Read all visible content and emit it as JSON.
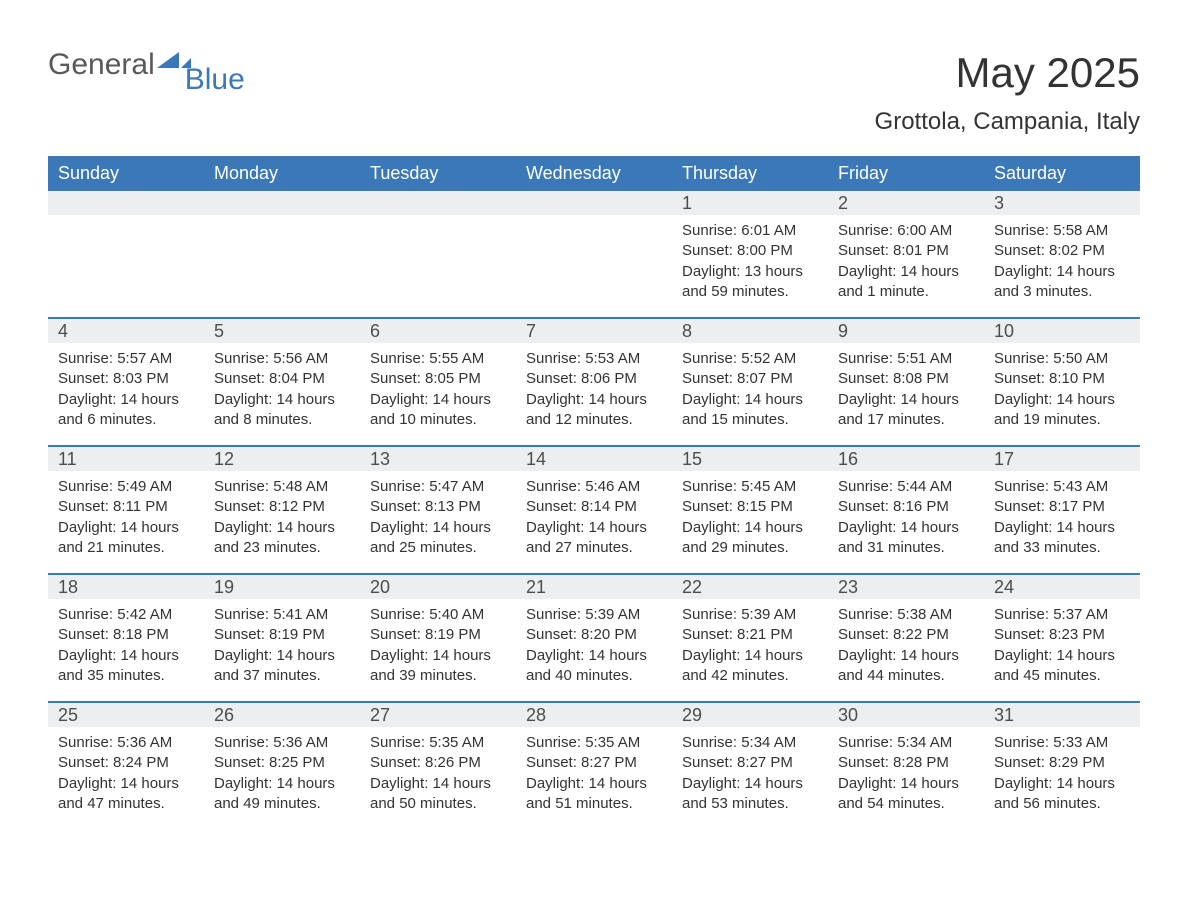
{
  "brand": {
    "word1": "General",
    "word2": "Blue",
    "shape_color": "#3a78b8"
  },
  "header": {
    "title": "May 2025",
    "location": "Grottola, Campania, Italy"
  },
  "calendar": {
    "accent_color": "#3a78b8",
    "header_bg": "#3a78b8",
    "header_text_color": "#ffffff",
    "dayrow_bg": "#eceeef",
    "text_color": "#333333",
    "columns": [
      "Sunday",
      "Monday",
      "Tuesday",
      "Wednesday",
      "Thursday",
      "Friday",
      "Saturday"
    ],
    "weeks": [
      [
        null,
        null,
        null,
        null,
        {
          "n": "1",
          "sunrise": "Sunrise: 6:01 AM",
          "sunset": "Sunset: 8:00 PM",
          "daylight": "Daylight: 13 hours and 59 minutes."
        },
        {
          "n": "2",
          "sunrise": "Sunrise: 6:00 AM",
          "sunset": "Sunset: 8:01 PM",
          "daylight": "Daylight: 14 hours and 1 minute."
        },
        {
          "n": "3",
          "sunrise": "Sunrise: 5:58 AM",
          "sunset": "Sunset: 8:02 PM",
          "daylight": "Daylight: 14 hours and 3 minutes."
        }
      ],
      [
        {
          "n": "4",
          "sunrise": "Sunrise: 5:57 AM",
          "sunset": "Sunset: 8:03 PM",
          "daylight": "Daylight: 14 hours and 6 minutes."
        },
        {
          "n": "5",
          "sunrise": "Sunrise: 5:56 AM",
          "sunset": "Sunset: 8:04 PM",
          "daylight": "Daylight: 14 hours and 8 minutes."
        },
        {
          "n": "6",
          "sunrise": "Sunrise: 5:55 AM",
          "sunset": "Sunset: 8:05 PM",
          "daylight": "Daylight: 14 hours and 10 minutes."
        },
        {
          "n": "7",
          "sunrise": "Sunrise: 5:53 AM",
          "sunset": "Sunset: 8:06 PM",
          "daylight": "Daylight: 14 hours and 12 minutes."
        },
        {
          "n": "8",
          "sunrise": "Sunrise: 5:52 AM",
          "sunset": "Sunset: 8:07 PM",
          "daylight": "Daylight: 14 hours and 15 minutes."
        },
        {
          "n": "9",
          "sunrise": "Sunrise: 5:51 AM",
          "sunset": "Sunset: 8:08 PM",
          "daylight": "Daylight: 14 hours and 17 minutes."
        },
        {
          "n": "10",
          "sunrise": "Sunrise: 5:50 AM",
          "sunset": "Sunset: 8:10 PM",
          "daylight": "Daylight: 14 hours and 19 minutes."
        }
      ],
      [
        {
          "n": "11",
          "sunrise": "Sunrise: 5:49 AM",
          "sunset": "Sunset: 8:11 PM",
          "daylight": "Daylight: 14 hours and 21 minutes."
        },
        {
          "n": "12",
          "sunrise": "Sunrise: 5:48 AM",
          "sunset": "Sunset: 8:12 PM",
          "daylight": "Daylight: 14 hours and 23 minutes."
        },
        {
          "n": "13",
          "sunrise": "Sunrise: 5:47 AM",
          "sunset": "Sunset: 8:13 PM",
          "daylight": "Daylight: 14 hours and 25 minutes."
        },
        {
          "n": "14",
          "sunrise": "Sunrise: 5:46 AM",
          "sunset": "Sunset: 8:14 PM",
          "daylight": "Daylight: 14 hours and 27 minutes."
        },
        {
          "n": "15",
          "sunrise": "Sunrise: 5:45 AM",
          "sunset": "Sunset: 8:15 PM",
          "daylight": "Daylight: 14 hours and 29 minutes."
        },
        {
          "n": "16",
          "sunrise": "Sunrise: 5:44 AM",
          "sunset": "Sunset: 8:16 PM",
          "daylight": "Daylight: 14 hours and 31 minutes."
        },
        {
          "n": "17",
          "sunrise": "Sunrise: 5:43 AM",
          "sunset": "Sunset: 8:17 PM",
          "daylight": "Daylight: 14 hours and 33 minutes."
        }
      ],
      [
        {
          "n": "18",
          "sunrise": "Sunrise: 5:42 AM",
          "sunset": "Sunset: 8:18 PM",
          "daylight": "Daylight: 14 hours and 35 minutes."
        },
        {
          "n": "19",
          "sunrise": "Sunrise: 5:41 AM",
          "sunset": "Sunset: 8:19 PM",
          "daylight": "Daylight: 14 hours and 37 minutes."
        },
        {
          "n": "20",
          "sunrise": "Sunrise: 5:40 AM",
          "sunset": "Sunset: 8:19 PM",
          "daylight": "Daylight: 14 hours and 39 minutes."
        },
        {
          "n": "21",
          "sunrise": "Sunrise: 5:39 AM",
          "sunset": "Sunset: 8:20 PM",
          "daylight": "Daylight: 14 hours and 40 minutes."
        },
        {
          "n": "22",
          "sunrise": "Sunrise: 5:39 AM",
          "sunset": "Sunset: 8:21 PM",
          "daylight": "Daylight: 14 hours and 42 minutes."
        },
        {
          "n": "23",
          "sunrise": "Sunrise: 5:38 AM",
          "sunset": "Sunset: 8:22 PM",
          "daylight": "Daylight: 14 hours and 44 minutes."
        },
        {
          "n": "24",
          "sunrise": "Sunrise: 5:37 AM",
          "sunset": "Sunset: 8:23 PM",
          "daylight": "Daylight: 14 hours and 45 minutes."
        }
      ],
      [
        {
          "n": "25",
          "sunrise": "Sunrise: 5:36 AM",
          "sunset": "Sunset: 8:24 PM",
          "daylight": "Daylight: 14 hours and 47 minutes."
        },
        {
          "n": "26",
          "sunrise": "Sunrise: 5:36 AM",
          "sunset": "Sunset: 8:25 PM",
          "daylight": "Daylight: 14 hours and 49 minutes."
        },
        {
          "n": "27",
          "sunrise": "Sunrise: 5:35 AM",
          "sunset": "Sunset: 8:26 PM",
          "daylight": "Daylight: 14 hours and 50 minutes."
        },
        {
          "n": "28",
          "sunrise": "Sunrise: 5:35 AM",
          "sunset": "Sunset: 8:27 PM",
          "daylight": "Daylight: 14 hours and 51 minutes."
        },
        {
          "n": "29",
          "sunrise": "Sunrise: 5:34 AM",
          "sunset": "Sunset: 8:27 PM",
          "daylight": "Daylight: 14 hours and 53 minutes."
        },
        {
          "n": "30",
          "sunrise": "Sunrise: 5:34 AM",
          "sunset": "Sunset: 8:28 PM",
          "daylight": "Daylight: 14 hours and 54 minutes."
        },
        {
          "n": "31",
          "sunrise": "Sunrise: 5:33 AM",
          "sunset": "Sunset: 8:29 PM",
          "daylight": "Daylight: 14 hours and 56 minutes."
        }
      ]
    ]
  }
}
